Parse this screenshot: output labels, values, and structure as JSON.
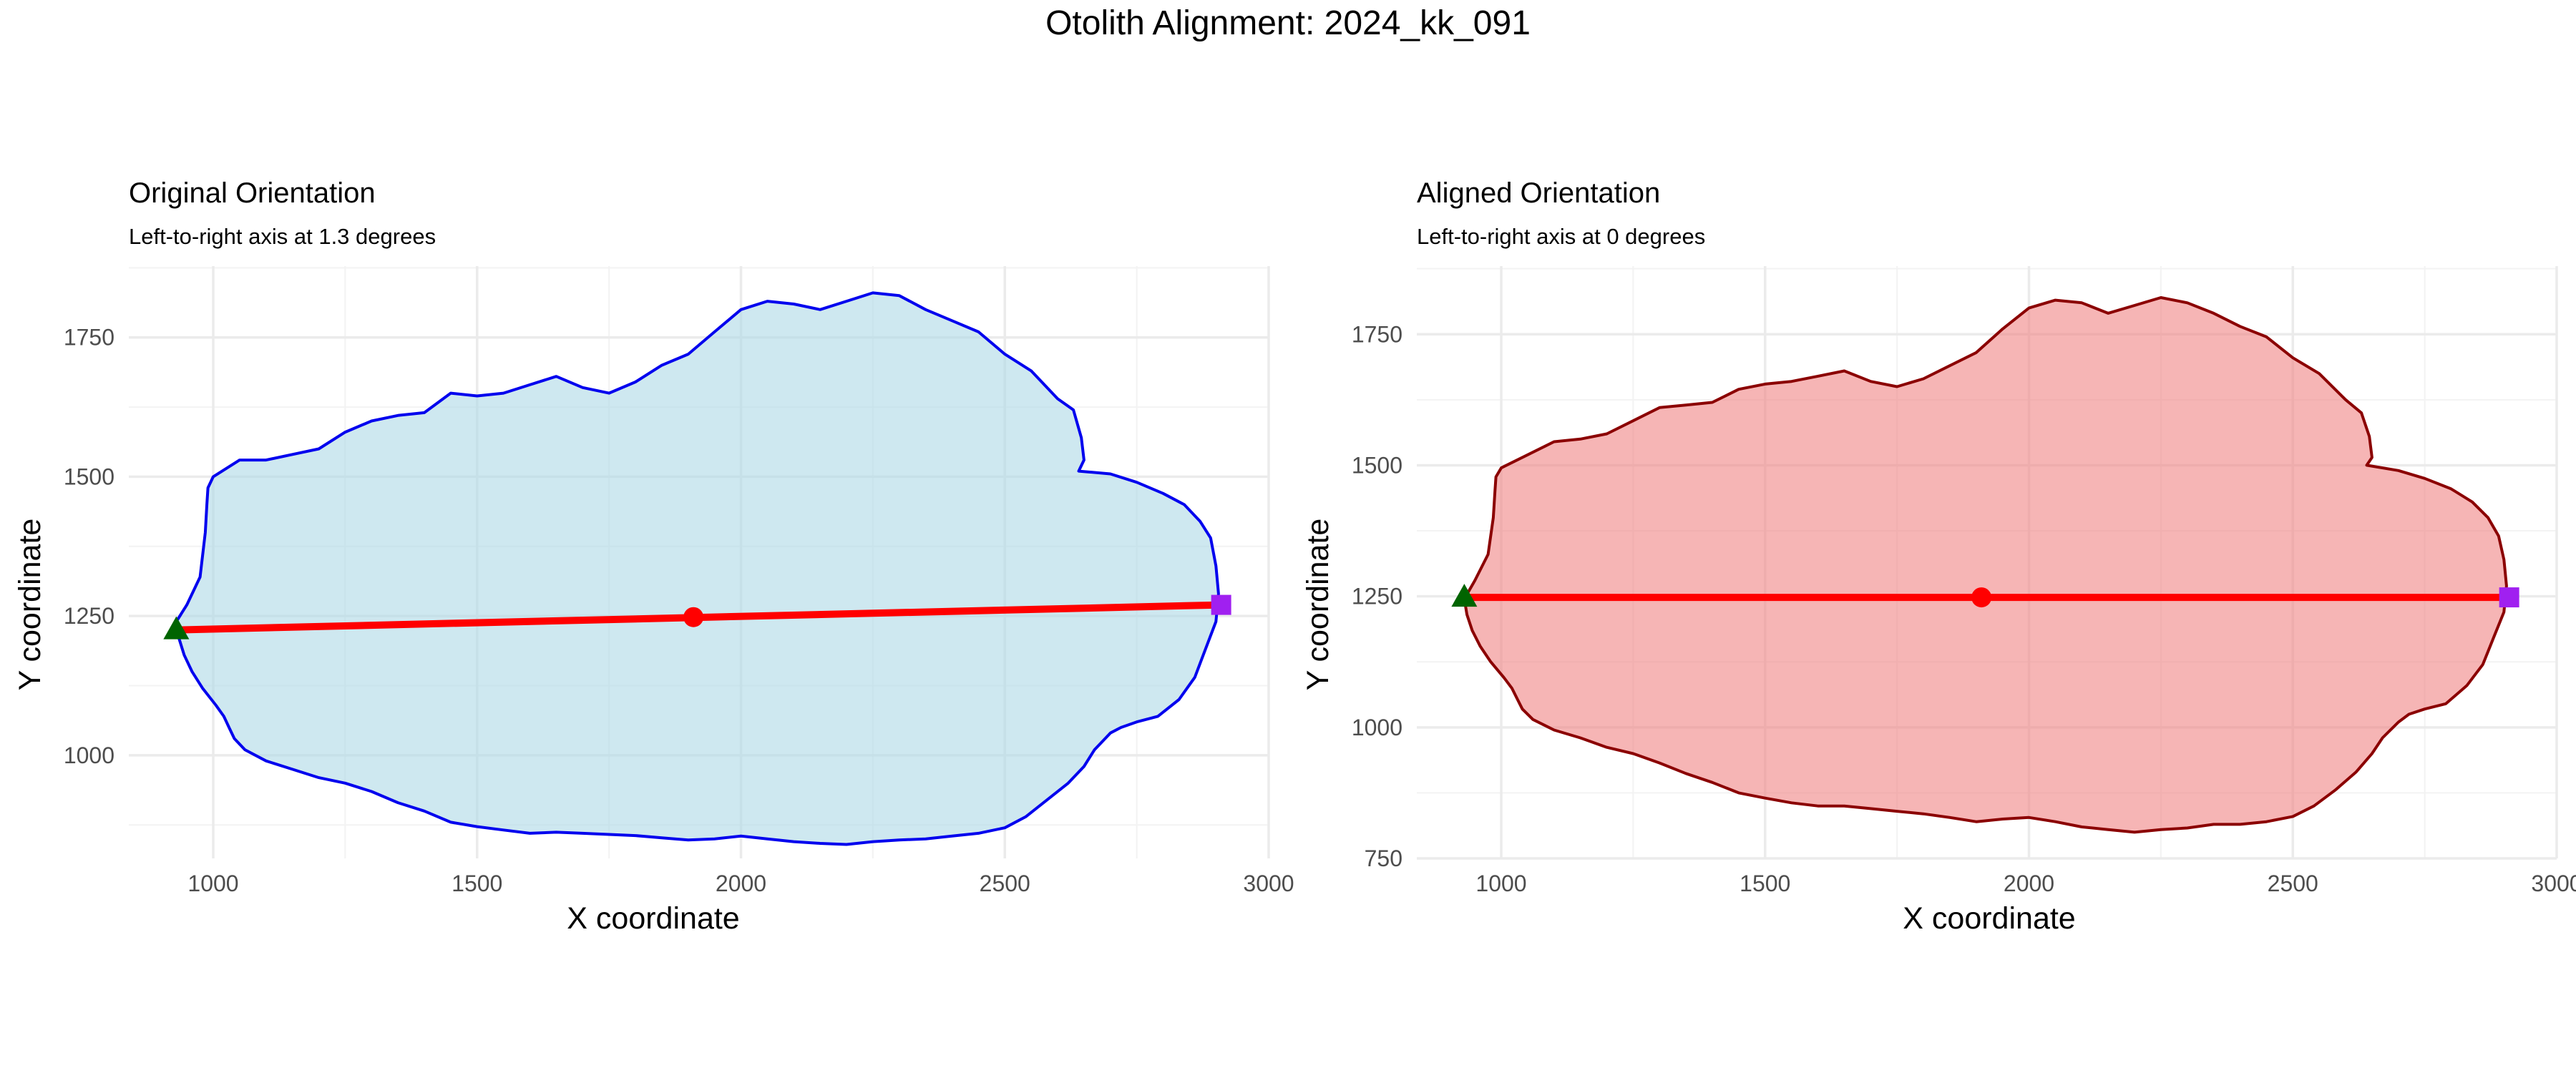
{
  "title": "Otolith Alignment: 2024_kk_091",
  "chart_data": [
    {
      "type": "area",
      "title": "Original Orientation",
      "subtitle": "Left-to-right axis at 1.3 degrees",
      "xlabel": "X coordinate",
      "ylabel": "Y coordinate",
      "xlim": [
        840,
        3000
      ],
      "ylim": [
        815,
        1878
      ],
      "xticks": [
        1000,
        1500,
        2000,
        2500,
        3000
      ],
      "yticks": [
        1000,
        1250,
        1500,
        1750
      ],
      "grid": true,
      "colors": {
        "outline": "#0000ee",
        "fill": "#add8e6",
        "axis_line": "#ff0000",
        "left_point": "#006400",
        "right_point": "#a020f0",
        "center_point": "#ff0000"
      },
      "outline": {
        "x": [
          990,
          1000,
          1050,
          1100,
          1150,
          1200,
          1250,
          1300,
          1350,
          1400,
          1450,
          1500,
          1550,
          1600,
          1650,
          1700,
          1750,
          1800,
          1850,
          1900,
          1950,
          2000,
          2050,
          2100,
          2150,
          2200,
          2250,
          2300,
          2350,
          2400,
          2450,
          2500,
          2550,
          2600,
          2630,
          2645,
          2650,
          2640,
          2700,
          2750,
          2800,
          2840,
          2870,
          2890,
          2900,
          2905,
          2900,
          2880,
          2860,
          2830,
          2790,
          2750,
          2720,
          2700,
          2670,
          2650,
          2620,
          2580,
          2540,
          2500,
          2450,
          2400,
          2350,
          2300,
          2250,
          2200,
          2150,
          2100,
          2050,
          2000,
          1950,
          1900,
          1850,
          1800,
          1750,
          1700,
          1650,
          1600,
          1550,
          1500,
          1450,
          1400,
          1350,
          1300,
          1250,
          1200,
          1150,
          1100,
          1060,
          1040,
          1030,
          1020,
          1005,
          980,
          960,
          945,
          935,
          930,
          950,
          975,
          985,
          988
        ],
        "y": [
          1480,
          1500,
          1530,
          1530,
          1540,
          1550,
          1580,
          1600,
          1610,
          1615,
          1650,
          1645,
          1650,
          1665,
          1680,
          1660,
          1650,
          1670,
          1700,
          1720,
          1760,
          1800,
          1815,
          1810,
          1800,
          1815,
          1830,
          1825,
          1800,
          1780,
          1760,
          1720,
          1690,
          1640,
          1620,
          1570,
          1530,
          1510,
          1505,
          1490,
          1470,
          1450,
          1420,
          1390,
          1340,
          1290,
          1240,
          1190,
          1140,
          1100,
          1070,
          1060,
          1050,
          1040,
          1010,
          980,
          950,
          920,
          890,
          870,
          860,
          855,
          850,
          848,
          845,
          840,
          842,
          845,
          850,
          855,
          850,
          848,
          852,
          856,
          858,
          860,
          862,
          860,
          866,
          872,
          880,
          900,
          915,
          935,
          950,
          960,
          975,
          990,
          1010,
          1030,
          1050,
          1070,
          1090,
          1120,
          1150,
          1180,
          1210,
          1240,
          1270,
          1320,
          1400,
          1450
        ]
      },
      "axis_line": {
        "x": [
          930,
          2910
        ],
        "y": [
          1225,
          1270
        ]
      },
      "left_point": {
        "x": 930,
        "y": 1225
      },
      "right_point": {
        "x": 2910,
        "y": 1270
      },
      "center_point": {
        "x": 1910,
        "y": 1248
      }
    },
    {
      "type": "area",
      "title": "Aligned Orientation",
      "subtitle": "Left-to-right axis at 0 degrees",
      "xlabel": "X coordinate",
      "ylabel": "Y coordinate",
      "xlim": [
        840,
        3000
      ],
      "ylim": [
        750,
        1880
      ],
      "xticks": [
        1000,
        1500,
        2000,
        2500,
        3000
      ],
      "yticks": [
        750,
        1000,
        1250,
        1500,
        1750
      ],
      "grid": true,
      "colors": {
        "outline": "#8b0000",
        "fill": "#f08080",
        "axis_line": "#ff0000",
        "left_point": "#006400",
        "right_point": "#a020f0",
        "center_point": "#ff0000"
      },
      "outline": {
        "x": [
          990,
          1000,
          1050,
          1100,
          1150,
          1200,
          1250,
          1300,
          1350,
          1400,
          1450,
          1500,
          1550,
          1600,
          1650,
          1700,
          1750,
          1800,
          1850,
          1900,
          1950,
          2000,
          2050,
          2100,
          2150,
          2200,
          2250,
          2300,
          2350,
          2400,
          2450,
          2500,
          2550,
          2600,
          2630,
          2645,
          2650,
          2640,
          2700,
          2750,
          2800,
          2840,
          2870,
          2890,
          2900,
          2905,
          2900,
          2880,
          2860,
          2830,
          2790,
          2750,
          2720,
          2700,
          2670,
          2650,
          2620,
          2580,
          2540,
          2500,
          2450,
          2400,
          2350,
          2300,
          2250,
          2200,
          2150,
          2100,
          2050,
          2000,
          1950,
          1900,
          1850,
          1800,
          1750,
          1700,
          1650,
          1600,
          1550,
          1500,
          1450,
          1400,
          1350,
          1300,
          1250,
          1200,
          1150,
          1100,
          1060,
          1040,
          1030,
          1020,
          1005,
          980,
          960,
          945,
          935,
          930,
          950,
          975,
          985,
          988
        ],
        "y": [
          1478,
          1495,
          1520,
          1545,
          1550,
          1560,
          1585,
          1610,
          1615,
          1620,
          1645,
          1655,
          1660,
          1670,
          1680,
          1660,
          1650,
          1665,
          1690,
          1715,
          1760,
          1800,
          1815,
          1810,
          1790,
          1805,
          1820,
          1810,
          1790,
          1765,
          1745,
          1705,
          1675,
          1625,
          1600,
          1555,
          1515,
          1500,
          1490,
          1475,
          1455,
          1430,
          1400,
          1365,
          1320,
          1270,
          1220,
          1170,
          1120,
          1080,
          1045,
          1035,
          1025,
          1010,
          980,
          950,
          915,
          880,
          850,
          830,
          820,
          815,
          815,
          808,
          805,
          800,
          805,
          810,
          820,
          828,
          825,
          820,
          828,
          835,
          840,
          845,
          850,
          850,
          856,
          865,
          875,
          895,
          912,
          932,
          950,
          962,
          980,
          995,
          1015,
          1035,
          1055,
          1075,
          1095,
          1125,
          1155,
          1185,
          1215,
          1245,
          1280,
          1330,
          1400,
          1450
        ]
      },
      "axis_line": {
        "x": [
          930,
          2910
        ],
        "y": [
          1248,
          1248
        ]
      },
      "left_point": {
        "x": 930,
        "y": 1248
      },
      "right_point": {
        "x": 2910,
        "y": 1248
      },
      "center_point": {
        "x": 1910,
        "y": 1248
      }
    }
  ]
}
